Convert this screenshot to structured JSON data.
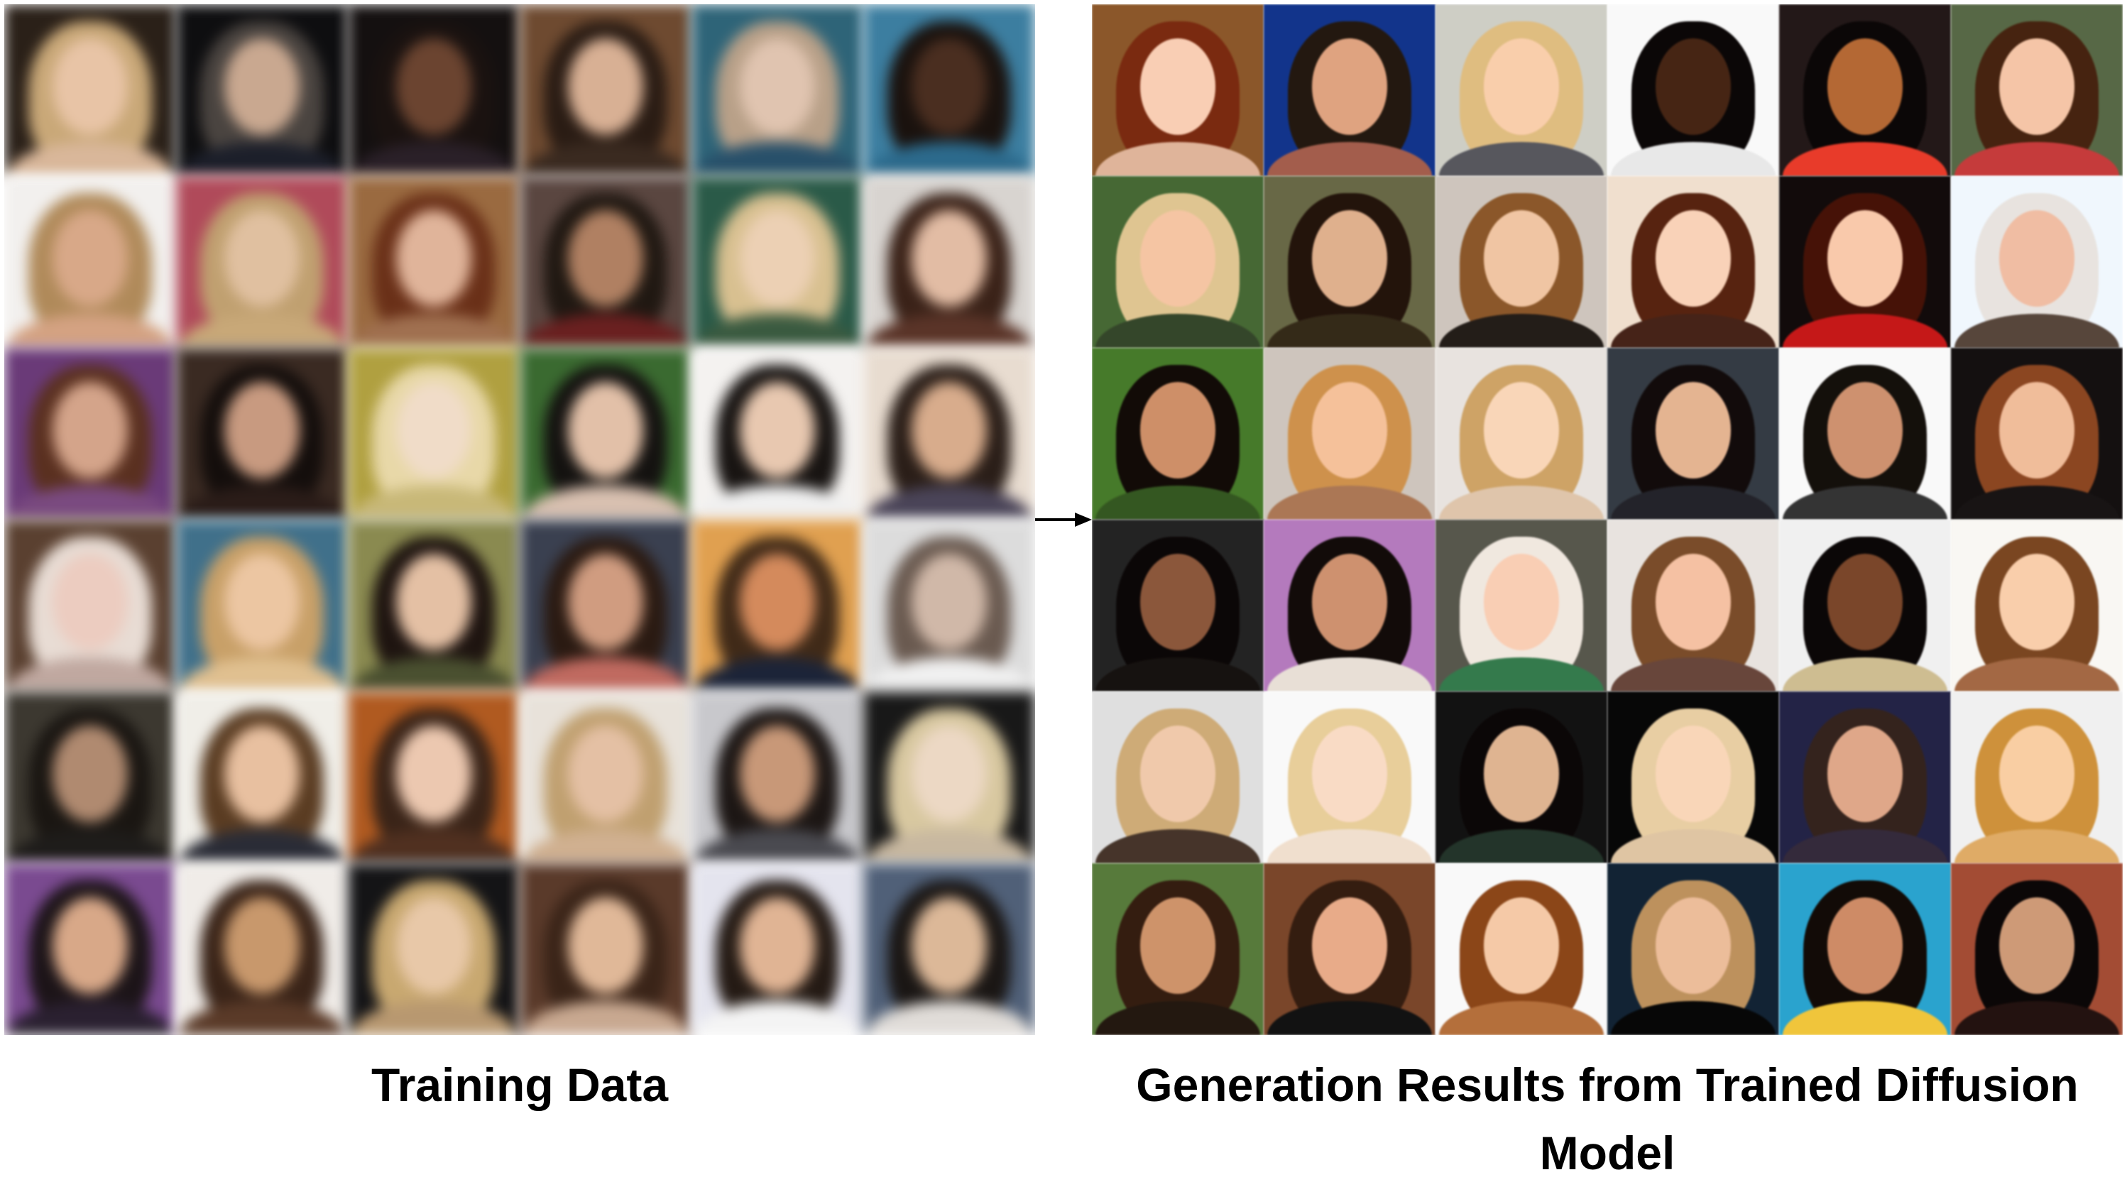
{
  "captions": {
    "training": "Training Data",
    "generated": "Generation Results from Trained Diffusion Model"
  },
  "training_grid": {
    "cells": [
      {
        "bg": "#2a2018",
        "hair": "#c9a878",
        "face": "#e8c4a6",
        "shoulders": "#d9b79a"
      },
      {
        "bg": "#0e0e10",
        "hair": "#4a4440",
        "face": "#c9a890",
        "shoulders": "#1c1f2a"
      },
      {
        "bg": "#141010",
        "hair": "#1a1210",
        "face": "#6b4430",
        "shoulders": "#2a2028"
      },
      {
        "bg": "#6e4a30",
        "hair": "#2a1c14",
        "face": "#d8b094",
        "shoulders": "#3a2a20"
      },
      {
        "bg": "#2e6478",
        "hair": "#b8a088",
        "face": "#e0c4b0",
        "shoulders": "#28506a"
      },
      {
        "bg": "#3c7ea0",
        "hair": "#1a120e",
        "face": "#4a2e20",
        "shoulders": "#2c6a8c"
      },
      {
        "bg": "#f2f0ee",
        "hair": "#b08a5a",
        "face": "#d8a888",
        "shoulders": "#d4a282"
      },
      {
        "bg": "#b04a5a",
        "hair": "#c0a070",
        "face": "#e0c0a0",
        "shoulders": "#c8a878"
      },
      {
        "bg": "#9a6a40",
        "hair": "#6a3018",
        "face": "#e0b49a",
        "shoulders": "#a07050"
      },
      {
        "bg": "#5a4640",
        "hair": "#201812",
        "face": "#b08062",
        "shoulders": "#6a2020"
      },
      {
        "bg": "#2a5a48",
        "hair": "#d8c090",
        "face": "#ecd0b4",
        "shoulders": "#3a5a40"
      },
      {
        "bg": "#d8d4d0",
        "hair": "#3a2218",
        "face": "#e2bca4",
        "shoulders": "#5a3428"
      },
      {
        "bg": "#6a3a78",
        "hair": "#5a3020",
        "face": "#d4a48a",
        "shoulders": "#7a4a80"
      },
      {
        "bg": "#3a2a22",
        "hair": "#140e0c",
        "face": "#c89a80",
        "shoulders": "#2a1c18"
      },
      {
        "bg": "#b0a040",
        "hair": "#e8d8a8",
        "face": "#f0dcc8",
        "shoulders": "#c8b878"
      },
      {
        "bg": "#3a6a30",
        "hair": "#141210",
        "face": "#e2c0a8",
        "shoulders": "#d8c0b0"
      },
      {
        "bg": "#f4f2f0",
        "hair": "#181412",
        "face": "#e8c8b0",
        "shoulders": "#f0f0f0"
      },
      {
        "bg": "#e8dcd0",
        "hair": "#2a1e18",
        "face": "#d8ac8c",
        "shoulders": "#4a4458"
      },
      {
        "bg": "#5a4030",
        "hair": "#e8dcd4",
        "face": "#ecccc0",
        "shoulders": "#c0a8a0"
      },
      {
        "bg": "#40708a",
        "hair": "#c8a068",
        "face": "#ecc6a2",
        "shoulders": "#e0c090"
      },
      {
        "bg": "#8a8a50",
        "hair": "#1e1410",
        "face": "#e4c0a4",
        "shoulders": "#4a5030"
      },
      {
        "bg": "#3a4050",
        "hair": "#2a1a12",
        "face": "#d09c80",
        "shoulders": "#c06a60"
      },
      {
        "bg": "#e0a050",
        "hair": "#402a18",
        "face": "#d48a5c",
        "shoulders": "#1c2438"
      },
      {
        "bg": "#dcdcdc",
        "hair": "#6a5a50",
        "face": "#d0b8a8",
        "shoulders": "#f0f0f0"
      },
      {
        "bg": "#3c3830",
        "hair": "#1a1612",
        "face": "#b08a70",
        "shoulders": "#1e1c1a"
      },
      {
        "bg": "#f0eee8",
        "hair": "#5a3c22",
        "face": "#e8c0a0",
        "shoulders": "#2a2c36"
      },
      {
        "bg": "#b05a20",
        "hair": "#3a2418",
        "face": "#ecc8b0",
        "shoulders": "#503020"
      },
      {
        "bg": "#e8e2da",
        "hair": "#c0a070",
        "face": "#e4c0a4",
        "shoulders": "#d0b090"
      },
      {
        "bg": "#c8c8cc",
        "hair": "#1c1614",
        "face": "#c89878",
        "shoulders": "#4a4a50"
      },
      {
        "bg": "#181818",
        "hair": "#d8c8a0",
        "face": "#ecd8c4",
        "shoulders": "#c8b8a0"
      },
      {
        "bg": "#7a4a90",
        "hair": "#1c1418",
        "face": "#d8a888",
        "shoulders": "#2a2030"
      },
      {
        "bg": "#f0ece8",
        "hair": "#3a2418",
        "face": "#c8986c",
        "shoulders": "#5a3a28"
      },
      {
        "bg": "#141416",
        "hair": "#c8a870",
        "face": "#e8c8a8",
        "shoulders": "#b89870"
      },
      {
        "bg": "#5a3a2a",
        "hair": "#3a2418",
        "face": "#e0b898",
        "shoulders": "#c8a890"
      },
      {
        "bg": "#e4e4ee",
        "hair": "#241a14",
        "face": "#e0b494",
        "shoulders": "#f4f4f4"
      },
      {
        "bg": "#506078",
        "hair": "#1a1614",
        "face": "#dcb898",
        "shoulders": "#e0dcd8"
      }
    ]
  },
  "generated_grid": {
    "cells": [
      {
        "bg": "#8a5a30",
        "hair": "#7a3018",
        "face": "#f0c8b0",
        "shoulders": "#d8b098"
      },
      {
        "bg": "#1a3a8a",
        "hair": "#2a2018",
        "face": "#d8a080",
        "shoulders": "#a06050"
      },
      {
        "bg": "#c8c8c0",
        "hair": "#d8b880",
        "face": "#f0c8a8",
        "shoulders": "#5a5a60"
      },
      {
        "bg": "#f0f0f0",
        "hair": "#141010",
        "face": "#4a2c1c",
        "shoulders": "#e0e0e0"
      },
      {
        "bg": "#2a2020",
        "hair": "#141010",
        "face": "#b06a3a",
        "shoulders": "#e04030"
      },
      {
        "bg": "#5a6a4a",
        "hair": "#4a2a18",
        "face": "#ecc0a4",
        "shoulders": "#c04040"
      },
      {
        "bg": "#4a6a3a",
        "hair": "#d8c090",
        "face": "#ecc0a0",
        "shoulders": "#3a4a30"
      },
      {
        "bg": "#6a6a4a",
        "hair": "#2a1c14",
        "face": "#d8ac8c",
        "shoulders": "#3a3020"
      },
      {
        "bg": "#c8c0b8",
        "hair": "#8a5a30",
        "face": "#e8c0a0",
        "shoulders": "#2a2420"
      },
      {
        "bg": "#e8d8c8",
        "hair": "#5a2a18",
        "face": "#f0ccb4",
        "shoulders": "#4a2a20"
      },
      {
        "bg": "#1a1414",
        "hair": "#4a1a10",
        "face": "#f0c4a8",
        "shoulders": "#c02020"
      },
      {
        "bg": "#e8eef4",
        "hair": "#e0dcd8",
        "face": "#e8b8a0",
        "shoulders": "#5a4a40"
      },
      {
        "bg": "#4a7a30",
        "hair": "#1a1410",
        "face": "#c88e6a",
        "shoulders": "#3a5a28"
      },
      {
        "bg": "#c8c0b8",
        "hair": "#c89050",
        "face": "#ecbc98",
        "shoulders": "#a87858"
      },
      {
        "bg": "#e0dcd8",
        "hair": "#c8a068",
        "face": "#f0d0b4",
        "shoulders": "#d8c0a8"
      },
      {
        "bg": "#3a4048",
        "hair": "#1a1414",
        "face": "#ddb090",
        "shoulders": "#2a2a30"
      },
      {
        "bg": "#f0f0f0",
        "hair": "#1c1814",
        "face": "#c89070",
        "shoulders": "#3a3a3a"
      },
      {
        "bg": "#1c1818",
        "hair": "#8a4a28",
        "face": "#e8b898",
        "shoulders": "#201c1c"
      },
      {
        "bg": "#2a2a2a",
        "hair": "#141010",
        "face": "#8a5a40",
        "shoulders": "#1e1a18"
      },
      {
        "bg": "#b07ab8",
        "hair": "#1a1412",
        "face": "#c89070",
        "shoulders": "#e0d8d0"
      },
      {
        "bg": "#5a5a50",
        "hair": "#e8e0d8",
        "face": "#f0c8b0",
        "shoulders": "#3a7a50"
      },
      {
        "bg": "#e0dcd8",
        "hair": "#7a5030",
        "face": "#ecbca0",
        "shoulders": "#6a4a40"
      },
      {
        "bg": "#e8e8e8",
        "hair": "#141010",
        "face": "#7a4a30",
        "shoulders": "#c8b890"
      },
      {
        "bg": "#f0eeea",
        "hair": "#7a4a28",
        "face": "#f0c8a8",
        "shoulders": "#a06a48"
      },
      {
        "bg": "#d8d8d8",
        "hair": "#c8a878",
        "face": "#e8c4a8",
        "shoulders": "#4a3a30"
      },
      {
        "bg": "#f0f0f0",
        "hair": "#e0c898",
        "face": "#f0d4c0",
        "shoulders": "#e8d8c8"
      },
      {
        "bg": "#1a1a1a",
        "hair": "#141010",
        "face": "#d8b090",
        "shoulders": "#2a3a30"
      },
      {
        "bg": "#101010",
        "hair": "#e0c8a0",
        "face": "#f0d0b4",
        "shoulders": "#d8c0a0"
      },
      {
        "bg": "#2a2a4a",
        "hair": "#3a2a24",
        "face": "#d8a488",
        "shoulders": "#3a3040"
      },
      {
        "bg": "#e8e8e8",
        "hair": "#c89040",
        "face": "#f0c8a0",
        "shoulders": "#d8a868"
      },
      {
        "bg": "#5a7a40",
        "hair": "#3a2418",
        "face": "#c8926c",
        "shoulders": "#2a2018"
      },
      {
        "bg": "#7a4a30",
        "hair": "#3a2418",
        "face": "#e0a888",
        "shoulders": "#1a1a1a"
      },
      {
        "bg": "#f0f0f0",
        "hair": "#8a4a20",
        "face": "#ecc4a4",
        "shoulders": "#b07040"
      },
      {
        "bg": "#1a2a3a",
        "hair": "#b89060",
        "face": "#e4b898",
        "shoulders": "#101010"
      },
      {
        "bg": "#30a0c8",
        "hair": "#1a1410",
        "face": "#c88a68",
        "shoulders": "#e8c040"
      },
      {
        "bg": "#a0503a",
        "hair": "#141010",
        "face": "#c89878",
        "shoulders": "#2a1a18"
      }
    ]
  }
}
